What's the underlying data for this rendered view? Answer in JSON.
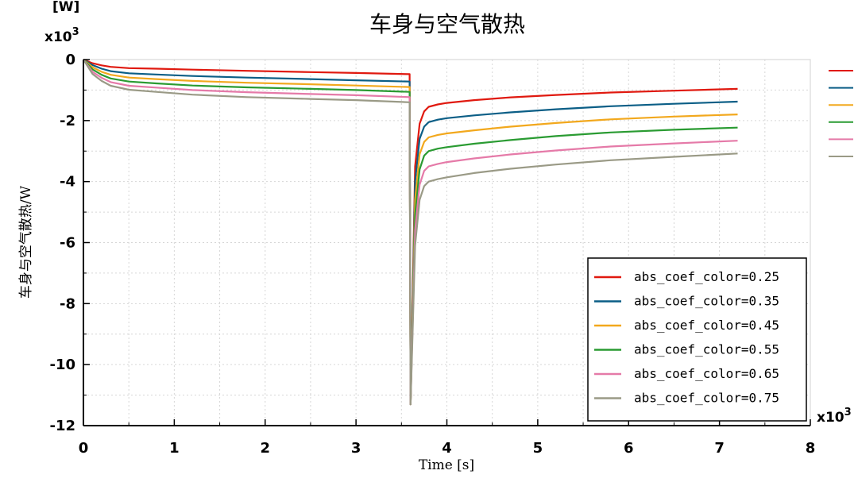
{
  "chart_data": {
    "type": "line",
    "title": "车身与空气散热",
    "xlabel": "Time [s]",
    "ylabel": "车身与空气散热/W",
    "y_unit": "[W]",
    "y_multiplier": "x10",
    "y_multiplier_exp": "3",
    "x_multiplier": "x10",
    "x_multiplier_exp": "3",
    "xlim": [
      0,
      8000
    ],
    "ylim": [
      -12000,
      0
    ],
    "x_ticks": [
      0,
      1000,
      2000,
      3000,
      4000,
      5000,
      6000,
      7000,
      8000
    ],
    "x_tick_labels": [
      "0",
      "1",
      "2",
      "3",
      "4",
      "5",
      "6",
      "7",
      "8"
    ],
    "y_ticks": [
      0,
      -2000,
      -4000,
      -6000,
      -8000,
      -10000,
      -12000
    ],
    "y_tick_labels": [
      "0",
      "-2",
      "-4",
      "-6",
      "-8",
      "-10",
      "-12"
    ],
    "grid": true,
    "legend_position": "bottom-right",
    "x": [
      0,
      100,
      200,
      300,
      500,
      800,
      1200,
      1800,
      2500,
      3000,
      3590,
      3600,
      3650,
      3700,
      3750,
      3800,
      3900,
      4000,
      4300,
      4700,
      5200,
      5800,
      6500,
      7200
    ],
    "series": [
      {
        "name": "abs_coef_color=0.25",
        "color": "#e0190f",
        "values": [
          0,
          -120,
          -190,
          -240,
          -280,
          -300,
          -330,
          -370,
          -410,
          -440,
          -480,
          -11300,
          -3500,
          -2100,
          -1700,
          -1550,
          -1470,
          -1420,
          -1330,
          -1240,
          -1160,
          -1080,
          -1020,
          -960
        ]
      },
      {
        "name": "abs_coef_color=0.35",
        "color": "#0b5e86",
        "values": [
          0,
          -180,
          -300,
          -380,
          -450,
          -490,
          -540,
          -590,
          -640,
          -680,
          -720,
          -11300,
          -4000,
          -2600,
          -2200,
          -2050,
          -1970,
          -1920,
          -1830,
          -1730,
          -1630,
          -1530,
          -1450,
          -1380
        ]
      },
      {
        "name": "abs_coef_color=0.45",
        "color": "#f2a81d",
        "values": [
          0,
          -250,
          -400,
          -500,
          -590,
          -640,
          -700,
          -760,
          -810,
          -850,
          -900,
          -11300,
          -4600,
          -3100,
          -2700,
          -2550,
          -2470,
          -2420,
          -2320,
          -2200,
          -2080,
          -1960,
          -1870,
          -1800
        ]
      },
      {
        "name": "abs_coef_color=0.55",
        "color": "#2a9b32",
        "values": [
          0,
          -320,
          -500,
          -620,
          -720,
          -780,
          -850,
          -910,
          -960,
          -1000,
          -1060,
          -11300,
          -5100,
          -3600,
          -3150,
          -3000,
          -2920,
          -2870,
          -2760,
          -2640,
          -2510,
          -2390,
          -2300,
          -2230
        ]
      },
      {
        "name": "abs_coef_color=0.65",
        "color": "#e57aa8",
        "values": [
          0,
          -400,
          -600,
          -740,
          -860,
          -920,
          -1000,
          -1070,
          -1130,
          -1170,
          -1230,
          -11300,
          -5600,
          -4100,
          -3650,
          -3500,
          -3420,
          -3360,
          -3240,
          -3110,
          -2980,
          -2850,
          -2750,
          -2660
        ]
      },
      {
        "name": "abs_coef_color=0.75",
        "color": "#9a9a86",
        "values": [
          0,
          -470,
          -700,
          -860,
          -990,
          -1060,
          -1150,
          -1230,
          -1290,
          -1330,
          -1400,
          -11300,
          -6100,
          -4600,
          -4150,
          -4000,
          -3920,
          -3860,
          -3720,
          -3580,
          -3440,
          -3300,
          -3190,
          -3080
        ]
      }
    ]
  }
}
